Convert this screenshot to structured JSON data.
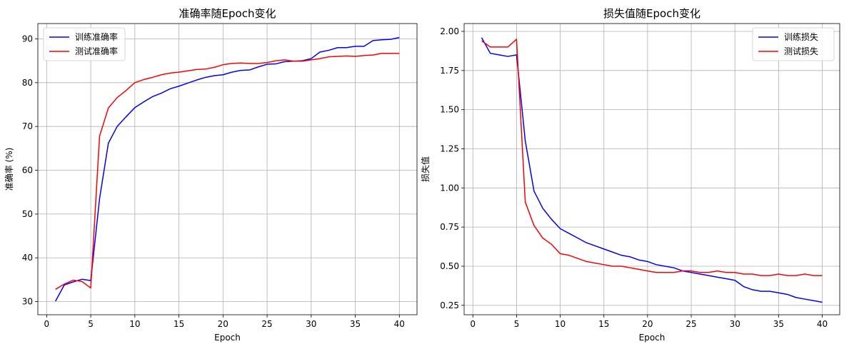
{
  "chart_data": [
    {
      "type": "line",
      "title": "准确率随Epoch变化",
      "xlabel": "Epoch",
      "ylabel": "准确率 (%)",
      "xlim": [
        -1,
        42
      ],
      "ylim": [
        27,
        93.5
      ],
      "xticks": [
        0,
        5,
        10,
        15,
        20,
        25,
        30,
        35,
        40
      ],
      "yticks": [
        30,
        40,
        50,
        60,
        70,
        80,
        90
      ],
      "grid": true,
      "legend_position": "top-left",
      "series": [
        {
          "name": "训练准确率",
          "color": "#0000ff",
          "x": [
            1,
            2,
            3,
            4,
            5,
            6,
            7,
            8,
            9,
            10,
            11,
            12,
            13,
            14,
            15,
            16,
            17,
            18,
            19,
            20,
            21,
            22,
            23,
            24,
            25,
            26,
            27,
            28,
            29,
            30,
            31,
            32,
            33,
            34,
            35,
            36,
            37,
            38,
            39,
            40
          ],
          "y": [
            30.1,
            33.8,
            34.5,
            35.1,
            34.8,
            53.5,
            66.2,
            70.0,
            72.2,
            74.3,
            75.6,
            76.8,
            77.6,
            78.6,
            79.2,
            79.9,
            80.6,
            81.2,
            81.6,
            81.8,
            82.4,
            82.8,
            82.9,
            83.6,
            84.2,
            84.3,
            84.8,
            84.9,
            85.0,
            85.5,
            87.0,
            87.4,
            88.0,
            88.0,
            88.3,
            88.3,
            89.6,
            89.8,
            89.9,
            90.3
          ]
        },
        {
          "name": "测试准确率",
          "color": "#ff0000",
          "x": [
            1,
            2,
            3,
            4,
            5,
            6,
            7,
            8,
            9,
            10,
            11,
            12,
            13,
            14,
            15,
            16,
            17,
            18,
            19,
            20,
            21,
            22,
            23,
            24,
            25,
            26,
            27,
            28,
            29,
            30,
            31,
            32,
            33,
            34,
            35,
            36,
            37,
            38,
            39,
            40
          ],
          "y": [
            32.8,
            34.0,
            34.9,
            34.6,
            33.1,
            67.8,
            74.2,
            76.6,
            78.2,
            80.0,
            80.7,
            81.2,
            81.8,
            82.2,
            82.4,
            82.7,
            83.0,
            83.1,
            83.5,
            84.1,
            84.4,
            84.5,
            84.4,
            84.4,
            84.6,
            85.0,
            85.2,
            84.9,
            84.9,
            85.2,
            85.5,
            85.9,
            86.0,
            86.1,
            86.0,
            86.2,
            86.3,
            86.7,
            86.7,
            86.7
          ]
        }
      ]
    },
    {
      "type": "line",
      "title": "损失值随Epoch变化",
      "xlabel": "Epoch",
      "ylabel": "损失值",
      "xlim": [
        -1,
        42
      ],
      "ylim": [
        0.19,
        2.05
      ],
      "xticks": [
        0,
        5,
        10,
        15,
        20,
        25,
        30,
        35,
        40
      ],
      "yticks": [
        0.25,
        0.5,
        0.75,
        1.0,
        1.25,
        1.5,
        1.75,
        2.0
      ],
      "grid": true,
      "legend_position": "top-right",
      "series": [
        {
          "name": "训练损失",
          "color": "#0000ff",
          "x": [
            1,
            2,
            3,
            4,
            5,
            6,
            7,
            8,
            9,
            10,
            11,
            12,
            13,
            14,
            15,
            16,
            17,
            18,
            19,
            20,
            21,
            22,
            23,
            24,
            25,
            26,
            27,
            28,
            29,
            30,
            31,
            32,
            33,
            34,
            35,
            36,
            37,
            38,
            39,
            40
          ],
          "y": [
            1.96,
            1.86,
            1.85,
            1.84,
            1.85,
            1.3,
            0.98,
            0.87,
            0.8,
            0.74,
            0.71,
            0.68,
            0.65,
            0.63,
            0.61,
            0.59,
            0.57,
            0.56,
            0.54,
            0.53,
            0.51,
            0.5,
            0.49,
            0.47,
            0.46,
            0.45,
            0.44,
            0.43,
            0.42,
            0.41,
            0.37,
            0.35,
            0.34,
            0.34,
            0.33,
            0.32,
            0.3,
            0.29,
            0.28,
            0.27
          ]
        },
        {
          "name": "测试损失",
          "color": "#ff0000",
          "x": [
            1,
            2,
            3,
            4,
            5,
            6,
            7,
            8,
            9,
            10,
            11,
            12,
            13,
            14,
            15,
            16,
            17,
            18,
            19,
            20,
            21,
            22,
            23,
            24,
            25,
            26,
            27,
            28,
            29,
            30,
            31,
            32,
            33,
            34,
            35,
            36,
            37,
            38,
            39,
            40
          ],
          "y": [
            1.94,
            1.9,
            1.9,
            1.9,
            1.95,
            0.91,
            0.76,
            0.68,
            0.64,
            0.58,
            0.57,
            0.55,
            0.53,
            0.52,
            0.51,
            0.5,
            0.5,
            0.49,
            0.48,
            0.47,
            0.46,
            0.46,
            0.46,
            0.47,
            0.47,
            0.46,
            0.46,
            0.47,
            0.46,
            0.46,
            0.45,
            0.45,
            0.44,
            0.44,
            0.45,
            0.44,
            0.44,
            0.45,
            0.44,
            0.44
          ]
        }
      ]
    }
  ]
}
